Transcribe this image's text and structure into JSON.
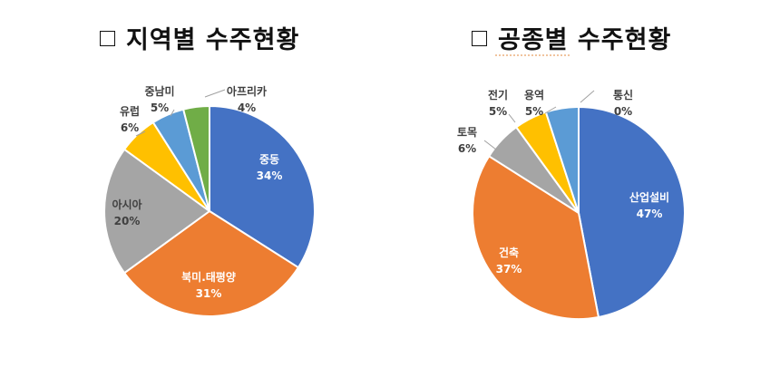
{
  "chart_data": [
    {
      "type": "pie",
      "title": "지역별 수주현황",
      "categories": [
        "중동",
        "북미.태평양",
        "아시아",
        "유럽",
        "중남미",
        "아프리카"
      ],
      "values": [
        34,
        31,
        20,
        6,
        5,
        4
      ],
      "value_labels": [
        "34%",
        "31%",
        "20%",
        "6%",
        "5%",
        "4%"
      ],
      "colors": [
        "#4472C4",
        "#ED7D31",
        "#A5A5A5",
        "#FFC000",
        "#5B9BD5",
        "#70AD47"
      ],
      "legend": "none"
    },
    {
      "type": "pie",
      "title": "공종별 수주현황",
      "categories": [
        "산업설비",
        "건축",
        "토목",
        "전기",
        "용역",
        "통신"
      ],
      "values": [
        47,
        37,
        6,
        5,
        5,
        0
      ],
      "value_labels": [
        "47%",
        "37%",
        "6%",
        "5%",
        "5%",
        "0%"
      ],
      "colors": [
        "#4472C4",
        "#ED7D31",
        "#A5A5A5",
        "#FFC000",
        "#5B9BD5",
        "#70AD47"
      ],
      "legend": "none"
    }
  ]
}
